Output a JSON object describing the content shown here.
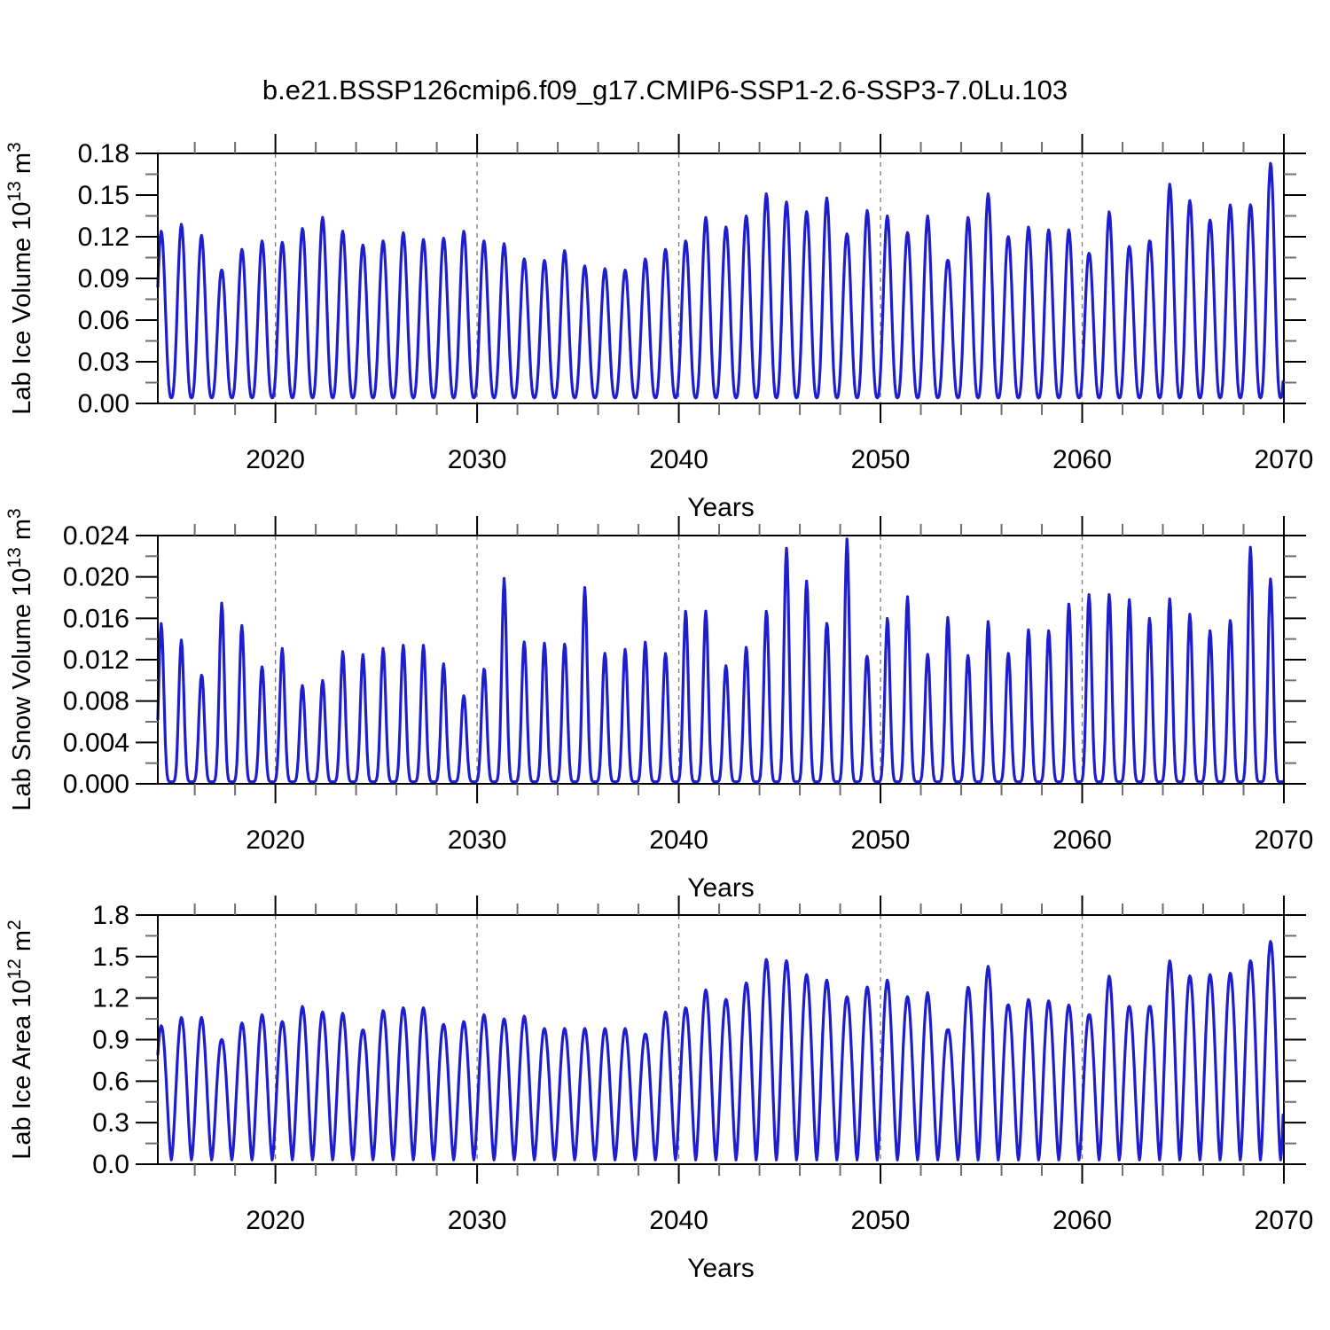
{
  "title": "b.e21.BSSP126cmip6.f09_g17.CMIP6-SSP1-2.6-SSP3-7.0Lu.103",
  "colors": {
    "line": "#1e1ecd",
    "grid": "#7a7a7a",
    "axis": "#000000",
    "minor_tick": "#6e6e6e",
    "background": "#ffffff",
    "text": "#000000"
  },
  "x_axis": {
    "label": "Years",
    "tick_labels": [
      "2020",
      "2030",
      "2040",
      "2050",
      "2060",
      "2070"
    ],
    "tick_years": [
      2020,
      2030,
      2040,
      2050,
      2060,
      2070
    ],
    "minor_tick_step_years": 2,
    "gridline_years": [
      2020,
      2030,
      2040,
      2050,
      2060
    ],
    "range": [
      2014.17,
      2070.0
    ]
  },
  "chart_data": [
    {
      "type": "line",
      "name": "lab-ice-volume",
      "ylabel_text": "Lab Ice Volume 10^13 m^3",
      "ylabel_segments": [
        {
          "t": "Lab Ice Volume 10",
          "sup": false
        },
        {
          "t": "13",
          "sup": true
        },
        {
          "t": " m",
          "sup": false
        },
        {
          "t": "3",
          "sup": true
        }
      ],
      "xlabel": "Years",
      "ylim": [
        0,
        0.18
      ],
      "ytick_labels": [
        "0.00",
        "0.03",
        "0.06",
        "0.09",
        "0.12",
        "0.15",
        "0.18"
      ],
      "ytick_values": [
        0,
        0.03,
        0.06,
        0.09,
        0.12,
        0.15,
        0.18
      ],
      "minor_ytick_step": 0.015,
      "grid": "vertical-dashed",
      "x_range": [
        2014.17,
        2070.0
      ],
      "annual_peak_year_start": 2014,
      "annual_peaks": [
        0.124,
        0.129,
        0.121,
        0.096,
        0.111,
        0.117,
        0.116,
        0.126,
        0.134,
        0.124,
        0.114,
        0.117,
        0.123,
        0.118,
        0.119,
        0.124,
        0.117,
        0.115,
        0.104,
        0.103,
        0.11,
        0.099,
        0.097,
        0.096,
        0.104,
        0.111,
        0.117,
        0.134,
        0.127,
        0.135,
        0.151,
        0.145,
        0.138,
        0.148,
        0.122,
        0.139,
        0.135,
        0.123,
        0.135,
        0.103,
        0.134,
        0.151,
        0.12,
        0.127,
        0.125,
        0.125,
        0.108,
        0.138,
        0.113,
        0.117,
        0.158,
        0.146,
        0.132,
        0.143,
        0.143,
        0.173
      ],
      "seasonal_min": 0.004,
      "peak_phase": 0.34,
      "shape_power": 1.35
    },
    {
      "type": "line",
      "name": "lab-snow-volume",
      "ylabel_text": "Lab Snow Volume 10^13 m^3",
      "ylabel_segments": [
        {
          "t": "Lab Snow Volume 10",
          "sup": false
        },
        {
          "t": "13",
          "sup": true
        },
        {
          "t": " m",
          "sup": false
        },
        {
          "t": "3",
          "sup": true
        }
      ],
      "xlabel": "Years",
      "ylim": [
        0,
        0.024
      ],
      "ytick_labels": [
        "0.000",
        "0.004",
        "0.008",
        "0.012",
        "0.016",
        "0.020",
        "0.024"
      ],
      "ytick_values": [
        0,
        0.004,
        0.008,
        0.012,
        0.016,
        0.02,
        0.024
      ],
      "minor_ytick_step": 0.002,
      "grid": "vertical-dashed",
      "x_range": [
        2014.17,
        2070.0
      ],
      "annual_peak_year_start": 2014,
      "annual_peaks": [
        0.0155,
        0.0139,
        0.0105,
        0.0175,
        0.0153,
        0.0113,
        0.0131,
        0.0095,
        0.01,
        0.0128,
        0.0125,
        0.0131,
        0.0134,
        0.0134,
        0.0116,
        0.0085,
        0.0111,
        0.0199,
        0.0137,
        0.0136,
        0.0135,
        0.019,
        0.0126,
        0.013,
        0.0137,
        0.0126,
        0.0167,
        0.0167,
        0.0114,
        0.0132,
        0.0167,
        0.0228,
        0.0196,
        0.0155,
        0.0237,
        0.0123,
        0.016,
        0.0181,
        0.0125,
        0.0161,
        0.0124,
        0.0157,
        0.0126,
        0.0149,
        0.0148,
        0.0174,
        0.0183,
        0.0183,
        0.0178,
        0.016,
        0.0179,
        0.0164,
        0.0148,
        0.0158,
        0.0229,
        0.0198
      ],
      "seasonal_min": 0.0002,
      "peak_phase": 0.34,
      "shape_power": 3.1
    },
    {
      "type": "line",
      "name": "lab-ice-area",
      "ylabel_text": "Lab Ice Area 10^12 m^2",
      "ylabel_segments": [
        {
          "t": "Lab Ice Area 10",
          "sup": false
        },
        {
          "t": "12",
          "sup": true
        },
        {
          "t": " m",
          "sup": false
        },
        {
          "t": "2",
          "sup": true
        }
      ],
      "xlabel": "Years",
      "ylim": [
        0,
        1.8
      ],
      "ytick_labels": [
        "0.0",
        "0.3",
        "0.6",
        "0.9",
        "1.2",
        "1.5",
        "1.8"
      ],
      "ytick_values": [
        0,
        0.3,
        0.6,
        0.9,
        1.2,
        1.5,
        1.8
      ],
      "minor_ytick_step": 0.15,
      "grid": "vertical-dashed",
      "x_range": [
        2014.17,
        2070.0
      ],
      "annual_peak_year_start": 2014,
      "annual_peaks": [
        1.0,
        1.06,
        1.06,
        0.9,
        1.02,
        1.08,
        1.03,
        1.14,
        1.1,
        1.09,
        0.97,
        1.11,
        1.13,
        1.13,
        1.01,
        1.03,
        1.08,
        1.05,
        1.07,
        0.98,
        0.98,
        0.98,
        0.98,
        0.98,
        0.94,
        1.1,
        1.13,
        1.26,
        1.19,
        1.31,
        1.48,
        1.47,
        1.37,
        1.33,
        1.21,
        1.28,
        1.33,
        1.21,
        1.24,
        0.97,
        1.28,
        1.43,
        1.15,
        1.19,
        1.18,
        1.15,
        1.08,
        1.36,
        1.14,
        1.14,
        1.47,
        1.36,
        1.37,
        1.38,
        1.47,
        1.61
      ],
      "seasonal_min": 0.03,
      "peak_phase": 0.34,
      "shape_power": 0.8
    }
  ]
}
